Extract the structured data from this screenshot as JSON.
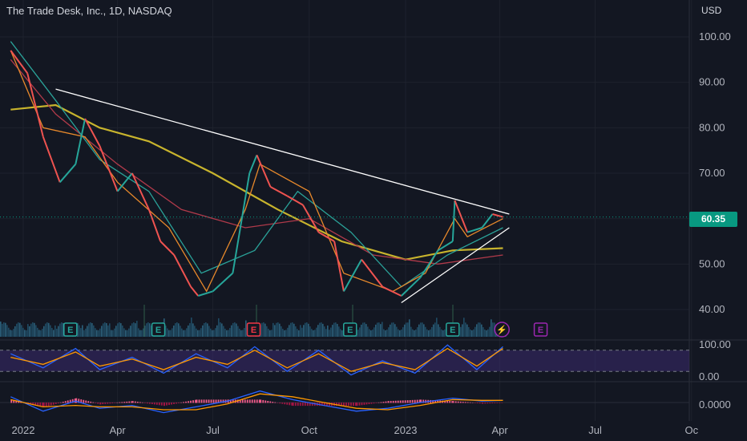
{
  "header": {
    "title": "The Trade Desk, Inc., 1D, NASDAQ",
    "currency": "USD",
    "last_price_label": "60.35"
  },
  "chart_data": [
    {
      "type": "line",
      "title": "The Trade Desk, Inc., 1D, NASDAQ",
      "ylabel": "USD",
      "ylim": [
        37,
        103
      ],
      "y_ticks": [
        "100.00",
        "90.00",
        "80.00",
        "70.00",
        "60.00",
        "50.00",
        "40.00"
      ],
      "x_ticks": [
        "2022",
        "Apr",
        "Jul",
        "Oct",
        "2023",
        "Apr",
        "Jul",
        "Oc"
      ],
      "last_price": 60.35,
      "price_series": {
        "x": [
          "2021-12-20",
          "2022-01-05",
          "2022-01-20",
          "2022-02-05",
          "2022-02-20",
          "2022-03-01",
          "2022-03-15",
          "2022-04-01",
          "2022-04-15",
          "2022-05-01",
          "2022-05-12",
          "2022-05-25",
          "2022-06-10",
          "2022-06-17",
          "2022-07-01",
          "2022-07-20",
          "2022-08-05",
          "2022-08-12",
          "2022-08-25",
          "2022-09-10",
          "2022-09-25",
          "2022-10-10",
          "2022-10-25",
          "2022-11-03",
          "2022-11-20",
          "2022-12-10",
          "2022-12-28",
          "2023-01-15",
          "2023-02-01",
          "2023-02-15",
          "2023-02-17",
          "2023-03-01",
          "2023-03-15",
          "2023-03-25",
          "2023-04-04"
        ],
        "close": [
          97,
          92,
          78,
          68,
          72,
          82,
          76,
          66,
          70,
          62,
          55,
          52,
          45,
          43,
          44,
          48,
          70,
          74,
          67,
          65,
          63,
          57,
          55,
          44,
          51,
          45,
          43,
          47,
          53,
          55,
          64,
          57,
          58,
          61,
          60.35
        ]
      },
      "trendlines": [
        {
          "name": "descending resistance",
          "points": [
            [
              "2022-02-01",
              88.5
            ],
            [
              "2023-04-10",
              61
            ]
          ]
        },
        {
          "name": "ascending support",
          "points": [
            [
              "2022-12-28",
              41.5
            ],
            [
              "2023-04-10",
              58
            ]
          ]
        }
      ],
      "moving_averages": [
        {
          "color": "#c8b42d",
          "x": [
            "2021-12-20",
            "2022-02-01",
            "2022-03-15",
            "2022-05-01",
            "2022-07-01",
            "2022-09-01",
            "2022-11-01",
            "2023-01-01",
            "2023-02-15",
            "2023-04-04"
          ],
          "y": [
            84,
            85,
            80,
            77,
            70,
            62,
            55,
            51,
            53,
            53.5
          ]
        },
        {
          "color": "#b03a4a",
          "x": [
            "2021-12-20",
            "2022-02-01",
            "2022-04-01",
            "2022-06-01",
            "2022-08-01",
            "2022-10-01",
            "2022-12-01",
            "2023-02-01",
            "2023-04-04"
          ],
          "y": [
            95,
            83,
            72,
            62,
            58,
            60,
            52,
            50,
            52
          ]
        },
        {
          "color": "#2aa198",
          "x": [
            "2021-12-20",
            "2022-02-01",
            "2022-03-15",
            "2022-05-01",
            "2022-06-20",
            "2022-08-10",
            "2022-09-20",
            "2022-11-10",
            "2022-12-28",
            "2023-02-10",
            "2023-04-04"
          ],
          "y": [
            99,
            86,
            73,
            66,
            48,
            53,
            66,
            57,
            45,
            52,
            58
          ]
        },
        {
          "color": "#e8892b",
          "x": [
            "2021-12-20",
            "2022-01-20",
            "2022-03-01",
            "2022-04-01",
            "2022-05-20",
            "2022-06-25",
            "2022-08-01",
            "2022-08-15",
            "2022-10-01",
            "2022-11-03",
            "2022-12-20",
            "2023-01-20",
            "2023-02-17",
            "2023-03-01",
            "2023-04-04"
          ],
          "y": [
            97,
            80,
            78,
            68,
            58,
            44,
            62,
            72,
            66,
            48,
            44,
            48,
            60,
            56,
            60
          ]
        }
      ],
      "events": [
        {
          "label": "E",
          "date": "2022-02-15",
          "type": "earnings"
        },
        {
          "label": "E",
          "date": "2022-05-10",
          "type": "earnings"
        },
        {
          "label": "E",
          "date": "2022-08-09",
          "type": "earnings"
        },
        {
          "label": "E",
          "date": "2022-11-09",
          "type": "earnings"
        },
        {
          "label": "E",
          "date": "2023-02-15",
          "type": "earnings"
        },
        {
          "label": "⚡",
          "date": "2023-04-03",
          "type": "dividend"
        },
        {
          "label": "E",
          "date": "2023-05-10",
          "type": "earnings"
        }
      ],
      "colors": {
        "up": "#26a69a",
        "down": "#ef5350",
        "trendline": "#ffffff",
        "last_price": "#089981"
      }
    },
    {
      "type": "line",
      "title": "",
      "ylim": [
        0,
        100
      ],
      "y_ticks": [
        "100.00",
        "0.00"
      ],
      "band": [
        20,
        80
      ],
      "x": [
        "2021-12-20",
        "2022-01-20",
        "2022-02-20",
        "2022-03-15",
        "2022-04-15",
        "2022-05-15",
        "2022-06-15",
        "2022-07-15",
        "2022-08-10",
        "2022-09-10",
        "2022-10-10",
        "2022-11-10",
        "2022-12-10",
        "2023-01-10",
        "2023-02-10",
        "2023-03-10",
        "2023-04-04"
      ],
      "series": [
        {
          "values": [
            70,
            30,
            85,
            25,
            60,
            15,
            70,
            30,
            90,
            20,
            80,
            10,
            50,
            15,
            95,
            25,
            90
          ]
        },
        {
          "values": [
            60,
            40,
            75,
            35,
            55,
            25,
            60,
            40,
            80,
            30,
            70,
            20,
            45,
            25,
            85,
            35,
            85
          ]
        }
      ],
      "colors": {
        "band": "#3b2a6e",
        "fast": "#2962ff",
        "slow": "#ff9800"
      }
    },
    {
      "type": "line",
      "title": "",
      "y_ticks": [
        "0.0000"
      ],
      "ylim": [
        -1,
        1
      ],
      "x": [
        "2021-12-20",
        "2022-01-20",
        "2022-02-20",
        "2022-03-15",
        "2022-04-15",
        "2022-05-15",
        "2022-06-15",
        "2022-07-15",
        "2022-08-15",
        "2022-09-15",
        "2022-10-15",
        "2022-11-15",
        "2022-12-15",
        "2023-01-15",
        "2023-02-15",
        "2023-03-15",
        "2023-04-04"
      ],
      "series": [
        {
          "values": [
            0.4,
            -0.6,
            0.1,
            -0.4,
            -0.2,
            -0.7,
            -0.3,
            0.1,
            0.8,
            0.2,
            -0.2,
            -0.6,
            -0.4,
            0.0,
            0.3,
            0.1,
            0.15
          ]
        },
        {
          "values": [
            0.2,
            -0.3,
            -0.2,
            -0.3,
            -0.3,
            -0.5,
            -0.5,
            -0.1,
            0.6,
            0.4,
            0.0,
            -0.4,
            -0.5,
            -0.2,
            0.2,
            0.15,
            0.15
          ]
        }
      ],
      "colors": {
        "macd": "#2962ff",
        "signal": "#ff9800",
        "hist": "#e91e63"
      }
    }
  ]
}
